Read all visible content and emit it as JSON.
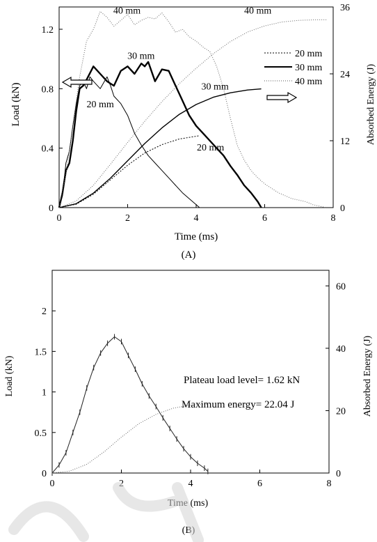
{
  "chart_data": [
    {
      "panel_label": "(A)",
      "type": "line",
      "xlabel": "Time (ms)",
      "ylabel": "Load (kN)",
      "ylabel_right": "Absorbed Energy (J)",
      "xlim": [
        0,
        8
      ],
      "ylim": [
        0,
        1.35
      ],
      "ylim_right": [
        0,
        36
      ],
      "xticks": [
        "0",
        "2",
        "4",
        "6",
        "8"
      ],
      "yticks": [
        "0",
        "0.4",
        "0.8",
        "1.2"
      ],
      "yticks_right": [
        "0",
        "12",
        "24",
        "36"
      ],
      "grid": false,
      "legend_position": "right",
      "legend": [
        "20 mm",
        "30 mm",
        "40 mm"
      ],
      "series": [
        {
          "name": "20 mm",
          "axis": "left",
          "kind": "load",
          "style": "thin",
          "x": [
            0,
            0.1,
            0.2,
            0.3,
            0.4,
            0.5,
            0.6,
            0.7,
            0.8,
            0.9,
            1.0,
            1.2,
            1.4,
            1.5,
            1.6,
            1.8,
            2.0,
            2.2,
            2.4,
            2.6,
            2.8,
            3.0,
            3.2,
            3.4,
            3.6,
            3.8,
            4.0,
            4.1
          ],
          "y": [
            0,
            0.08,
            0.3,
            0.38,
            0.55,
            0.7,
            0.82,
            0.85,
            0.8,
            0.88,
            0.85,
            0.8,
            0.88,
            0.82,
            0.75,
            0.7,
            0.62,
            0.5,
            0.42,
            0.35,
            0.3,
            0.25,
            0.2,
            0.15,
            0.1,
            0.06,
            0.02,
            0
          ]
        },
        {
          "name": "30 mm",
          "axis": "left",
          "kind": "load",
          "style": "thick",
          "x": [
            0,
            0.1,
            0.2,
            0.3,
            0.4,
            0.5,
            0.6,
            0.7,
            0.8,
            1.0,
            1.2,
            1.4,
            1.6,
            1.8,
            2.0,
            2.2,
            2.4,
            2.5,
            2.6,
            2.8,
            3.0,
            3.2,
            3.4,
            3.6,
            3.8,
            4.0,
            4.2,
            4.4,
            4.6,
            4.8,
            5.0,
            5.2,
            5.4,
            5.6,
            5.8,
            5.9
          ],
          "y": [
            0,
            0.1,
            0.25,
            0.3,
            0.45,
            0.65,
            0.8,
            0.82,
            0.86,
            0.95,
            0.9,
            0.85,
            0.82,
            0.92,
            0.95,
            0.9,
            0.97,
            0.95,
            0.98,
            0.85,
            0.93,
            0.92,
            0.82,
            0.72,
            0.62,
            0.55,
            0.5,
            0.45,
            0.4,
            0.35,
            0.28,
            0.22,
            0.15,
            0.1,
            0.04,
            0
          ]
        },
        {
          "name": "40 mm",
          "axis": "left",
          "kind": "load",
          "style": "dotted",
          "x": [
            0,
            0.2,
            0.4,
            0.6,
            0.8,
            1.0,
            1.2,
            1.4,
            1.6,
            1.8,
            2.0,
            2.2,
            2.4,
            2.6,
            2.8,
            3.0,
            3.2,
            3.4,
            3.6,
            3.8,
            4.0,
            4.2,
            4.4,
            4.6,
            4.8,
            5.0,
            5.2,
            5.4,
            5.6,
            5.8,
            6.0,
            6.2,
            6.4,
            6.6,
            6.8,
            7.0,
            7.2,
            7.4,
            7.6,
            7.8
          ],
          "y": [
            0,
            0.22,
            0.55,
            0.88,
            1.12,
            1.2,
            1.32,
            1.28,
            1.22,
            1.26,
            1.3,
            1.23,
            1.26,
            1.28,
            1.27,
            1.31,
            1.25,
            1.18,
            1.2,
            1.15,
            1.12,
            1.08,
            1.05,
            0.95,
            0.8,
            0.6,
            0.42,
            0.32,
            0.25,
            0.2,
            0.16,
            0.13,
            0.1,
            0.08,
            0.06,
            0.05,
            0.04,
            0.02,
            0.01,
            0
          ]
        },
        {
          "name": "20 mm",
          "axis": "right",
          "kind": "energy",
          "style": "dashed",
          "x": [
            0,
            0.5,
            1.0,
            1.5,
            2.0,
            2.5,
            3.0,
            3.5,
            4.0,
            4.1
          ],
          "y": [
            0,
            0.6,
            2.4,
            5.0,
            7.6,
            9.8,
            11.3,
            12.3,
            12.8,
            12.9
          ]
        },
        {
          "name": "30 mm",
          "axis": "right",
          "kind": "energy",
          "style": "solid",
          "x": [
            0,
            0.5,
            1.0,
            1.5,
            2.0,
            2.5,
            3.0,
            3.5,
            4.0,
            4.5,
            5.0,
            5.5,
            5.9
          ],
          "y": [
            0,
            0.7,
            2.6,
            5.3,
            8.4,
            11.5,
            14.3,
            16.7,
            18.5,
            19.8,
            20.6,
            21.1,
            21.3
          ]
        },
        {
          "name": "40 mm",
          "axis": "right",
          "kind": "energy",
          "style": "dotted",
          "x": [
            0,
            0.5,
            1.0,
            1.5,
            2.0,
            2.5,
            3.0,
            3.5,
            4.0,
            4.5,
            5.0,
            5.5,
            6.0,
            6.5,
            7.0,
            7.5,
            7.8
          ],
          "y": [
            0,
            1.2,
            4.0,
            7.8,
            11.7,
            15.5,
            19.0,
            22.2,
            25.0,
            27.6,
            29.8,
            31.5,
            32.6,
            33.3,
            33.6,
            33.7,
            33.7
          ]
        }
      ],
      "annotations": [
        {
          "text": "40 mm",
          "x": 1.98,
          "y": 1.305
        },
        {
          "text": "40 mm",
          "x": 5.8,
          "y": 1.305
        },
        {
          "text": "30 mm",
          "x": 2.39,
          "y": 1.0
        },
        {
          "text": "30 mm",
          "x": 4.55,
          "y": 0.795
        },
        {
          "text": "20 mm",
          "x": 1.2,
          "y": 0.675
        },
        {
          "text": "20 mm",
          "x": 4.42,
          "y": 0.385
        }
      ]
    },
    {
      "panel_label": "(B)",
      "type": "line",
      "xlabel": "Time (ms)",
      "ylabel": "Load (kN)",
      "ylabel_right": "Absorbed Energy (J)",
      "xlim": [
        0,
        8
      ],
      "ylim": [
        0,
        2.5
      ],
      "ylim_right": [
        0,
        65
      ],
      "xticks": [
        "0",
        "2",
        "4",
        "6",
        "8"
      ],
      "yticks": [
        "0",
        "0.5",
        "1",
        "1.5",
        "2"
      ],
      "yticks_right": [
        "0",
        "20",
        "40",
        "60"
      ],
      "grid": false,
      "annotations_text": [
        "Plateau load level= 1.62 kN",
        "Maximum energy= 22.04 J"
      ],
      "series": [
        {
          "axis": "left",
          "kind": "load",
          "style": "marker",
          "x": [
            0,
            0.2,
            0.4,
            0.6,
            0.8,
            1.0,
            1.2,
            1.4,
            1.6,
            1.8,
            2.0,
            2.2,
            2.4,
            2.6,
            2.8,
            3.0,
            3.2,
            3.4,
            3.6,
            3.8,
            4.0,
            4.2,
            4.4,
            4.5
          ],
          "y": [
            0,
            0.1,
            0.25,
            0.5,
            0.75,
            1.05,
            1.3,
            1.48,
            1.6,
            1.68,
            1.62,
            1.45,
            1.28,
            1.1,
            0.95,
            0.82,
            0.68,
            0.55,
            0.42,
            0.3,
            0.2,
            0.12,
            0.06,
            0.02
          ]
        },
        {
          "axis": "right",
          "kind": "energy",
          "style": "dotted",
          "x": [
            0,
            0.5,
            1.0,
            1.5,
            2.0,
            2.5,
            3.0,
            3.5,
            4.0,
            4.5
          ],
          "y": [
            0,
            0.6,
            2.8,
            6.8,
            11.5,
            15.8,
            18.8,
            20.8,
            21.8,
            22.04
          ]
        }
      ]
    }
  ]
}
